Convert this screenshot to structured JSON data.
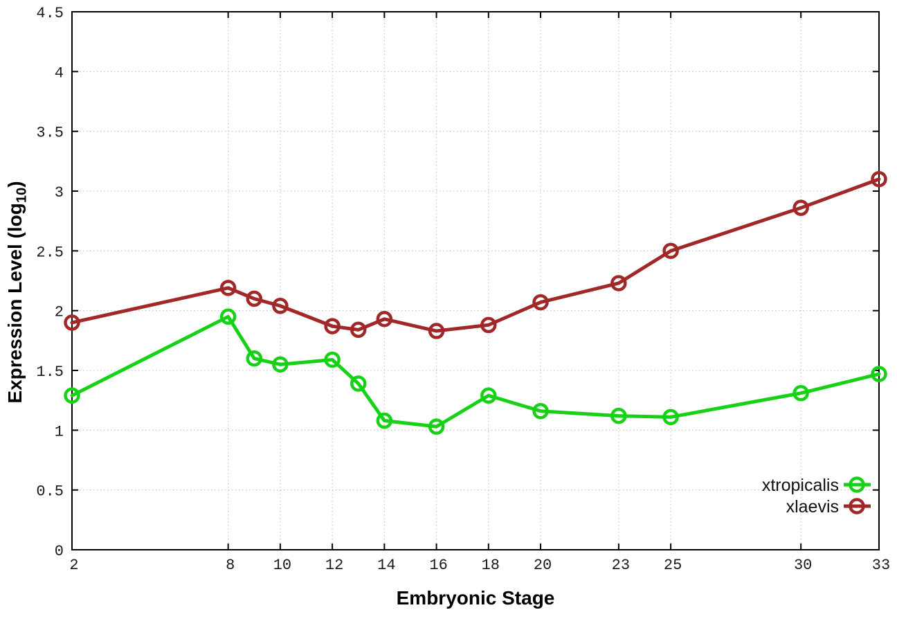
{
  "chart_data": {
    "type": "line",
    "title": "",
    "xlabel": "Embryonic Stage",
    "ylabel": "Expression Level (log10)",
    "ylabel_parts": {
      "prefix": "Expression Level (log",
      "sub": "10",
      "suffix": ")"
    },
    "x": [
      2,
      8,
      9,
      10,
      12,
      13,
      14,
      16,
      18,
      20,
      23,
      25,
      30,
      33
    ],
    "series": [
      {
        "name": "xtropicalis",
        "color": "#17d117",
        "marker": "open-circle",
        "values": [
          1.29,
          1.95,
          1.6,
          1.55,
          1.59,
          1.39,
          1.08,
          1.03,
          1.29,
          1.16,
          1.12,
          1.11,
          1.31,
          1.47
        ]
      },
      {
        "name": "xlaevis",
        "color": "#a02828",
        "marker": "open-circle",
        "values": [
          1.9,
          2.19,
          2.1,
          2.04,
          1.87,
          1.84,
          1.93,
          1.83,
          1.88,
          2.07,
          2.23,
          2.5,
          2.86,
          3.1
        ]
      }
    ],
    "xlim": [
      2,
      33
    ],
    "ylim": [
      0,
      4.5
    ],
    "x_tick_values": [
      2,
      8,
      10,
      12,
      14,
      16,
      18,
      20,
      23,
      25,
      30,
      33
    ],
    "x_tick_labels": [
      "2",
      "8",
      "10",
      "12",
      "14",
      "16",
      "18",
      "20",
      "23",
      "25",
      "30",
      "33"
    ],
    "y_tick_values": [
      0,
      0.5,
      1,
      1.5,
      2,
      2.5,
      3,
      3.5,
      4,
      4.5
    ],
    "y_tick_labels": [
      "0",
      "0.5",
      "1",
      "1.5",
      "2",
      "2.5",
      "3",
      "3.5",
      "4",
      "4.5"
    ],
    "grid": "dotted",
    "tick_style": "inward-mirrored",
    "legend_position": "bottom-right"
  },
  "colors": {
    "background": "#ffffff",
    "axis_border": "#000000",
    "grid": "#c9c9c9",
    "tick_text": "#1a1a1a",
    "xtropicalis": "#17d117",
    "xlaevis": "#a02828"
  }
}
